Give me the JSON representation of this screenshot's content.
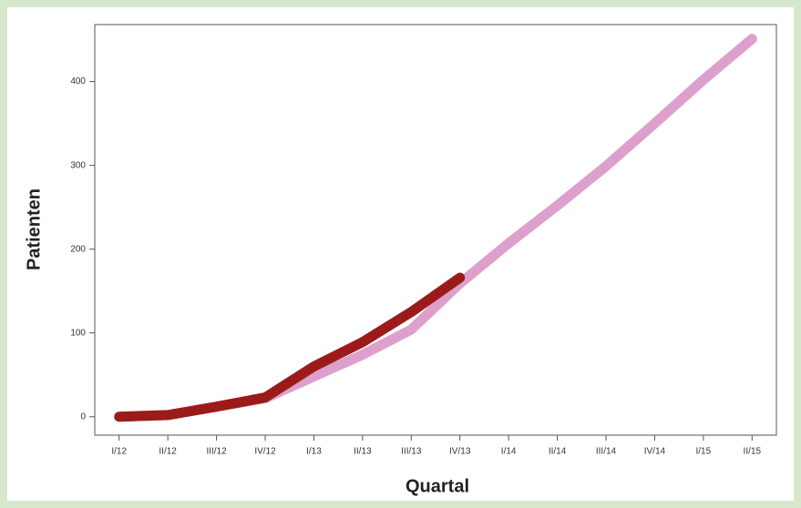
{
  "chart_data": {
    "type": "line",
    "x_label": "Quartal",
    "y_label": "Patienten",
    "categories": [
      "I/12",
      "II/12",
      "III/12",
      "IV/12",
      "I/13",
      "II/13",
      "III/13",
      "IV/13",
      "I/14",
      "II/14",
      "III/14",
      "IV/14",
      "I/15",
      "II/15"
    ],
    "series": [
      {
        "color": "#dda0cc",
        "values": [
          0,
          2,
          12,
          22,
          48,
          74,
          104,
          159,
          207,
          252,
          299,
          350,
          402,
          451
        ]
      },
      {
        "color": "#9b1b1b",
        "values": [
          0,
          2,
          12,
          23,
          60,
          89,
          125,
          166,
          null,
          null,
          null,
          null,
          null,
          null
        ]
      }
    ],
    "ylim": [
      -22,
      468
    ],
    "yticks": [
      0,
      100,
      200,
      300,
      400
    ],
    "grid": false
  }
}
